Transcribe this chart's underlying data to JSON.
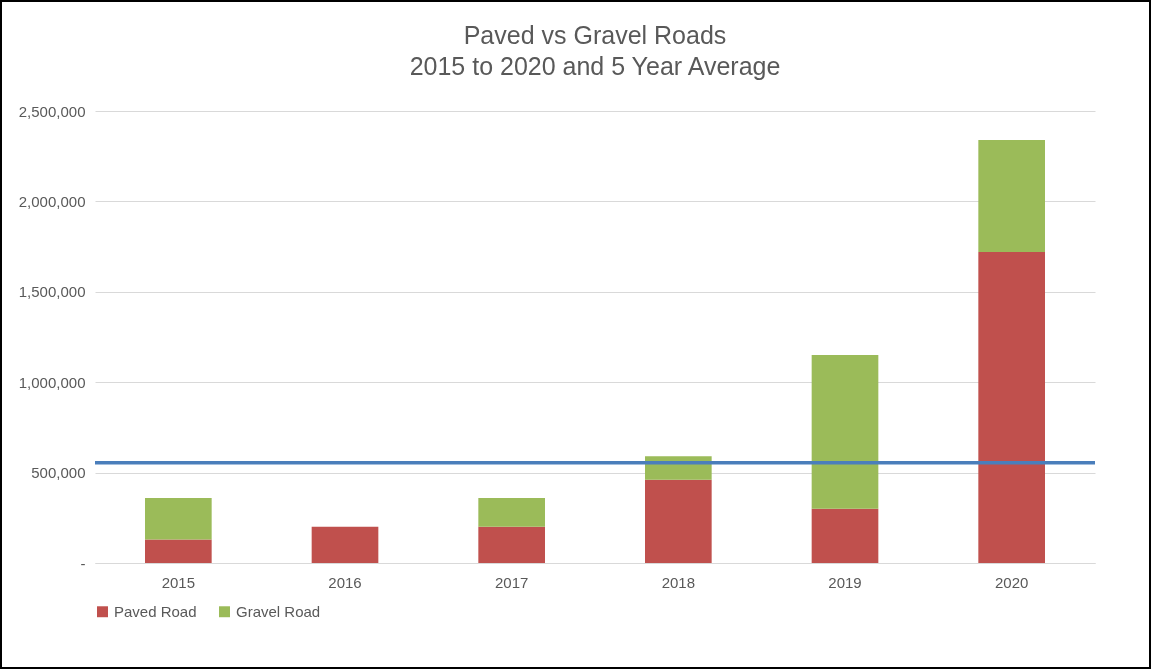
{
  "chart_data": {
    "type": "bar",
    "title": "Paved vs Gravel Roads",
    "subtitle": "2015 to 2020 and 5 Year Average",
    "categories": [
      "2015",
      "2016",
      "2017",
      "2018",
      "2019",
      "2020"
    ],
    "stacked": true,
    "series": [
      {
        "name": "Paved Road",
        "color": "#c0504d",
        "values": [
          130000,
          200000,
          200000,
          460000,
          300000,
          1720000
        ]
      },
      {
        "name": "Gravel Road",
        "color": "#9bbb59",
        "values": [
          230000,
          0,
          160000,
          130000,
          850000,
          620000
        ]
      }
    ],
    "ylim": [
      0,
      2500000
    ],
    "yticks": [
      {
        "value": 0,
        "label": "-"
      },
      {
        "value": 500000,
        "label": "500,000"
      },
      {
        "value": 1000000,
        "label": "1,000,000"
      },
      {
        "value": 1500000,
        "label": "1,500,000"
      },
      {
        "value": 2000000,
        "label": "2,000,000"
      },
      {
        "value": 2500000,
        "label": "2,500,000"
      }
    ],
    "ref_lines": [
      {
        "axis": "y",
        "value": 555000,
        "color": "#4a7ebb"
      }
    ],
    "grid": "y",
    "legend": "bottom"
  }
}
